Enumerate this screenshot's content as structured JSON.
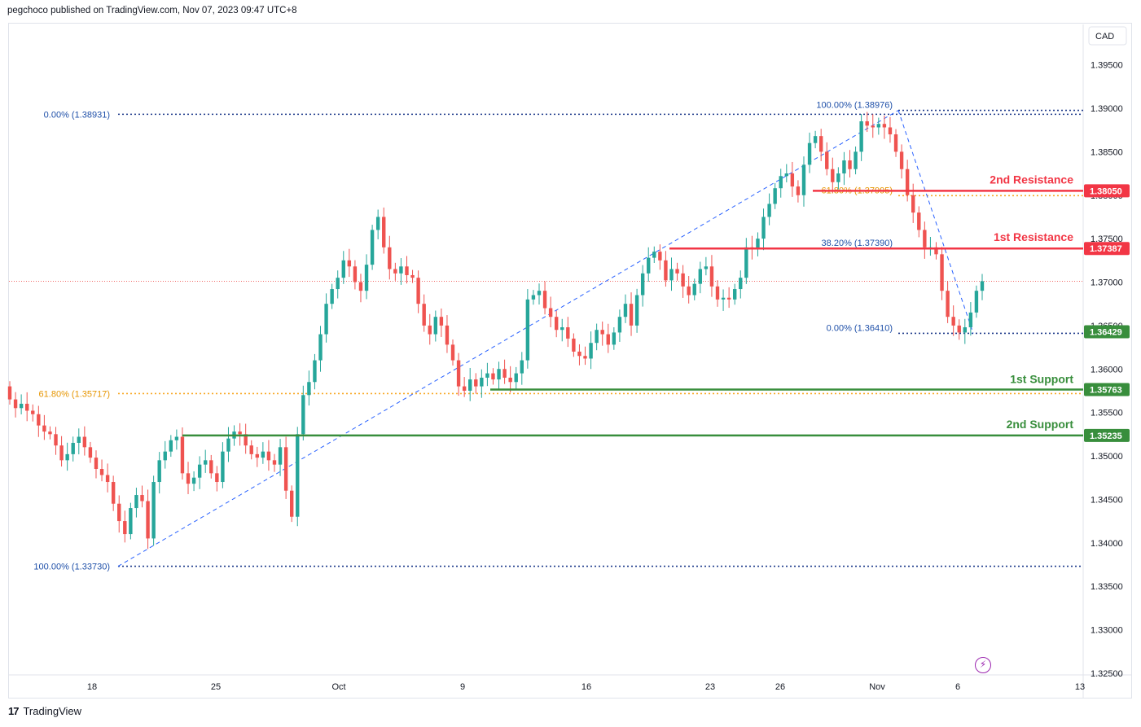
{
  "header": {
    "publisher_line": "pegchoco published on TradingView.com, Nov 07, 2023 09:47 UTC+8"
  },
  "footer": {
    "brand": "TradingView",
    "logo_glyph": "17"
  },
  "toolbar": {
    "currency_button": "CAD",
    "alert_icon": "lightning-icon"
  },
  "colors": {
    "bull": "#26a69a",
    "bear": "#ef5350",
    "resistance": "#f23645",
    "support": "#388e3c",
    "fib_blue": "#2962ff",
    "fib_orange": "#f9a825",
    "trend": "#2962ff"
  },
  "chart_data": {
    "type": "candlestick",
    "symbol_currency": "CAD",
    "ylim": [
      1.3245,
      1.3992
    ],
    "y_ticks": [
      "1.39500",
      "1.39000",
      "1.38500",
      "1.38000",
      "1.37500",
      "1.37000",
      "1.36500",
      "1.36000",
      "1.35500",
      "1.35000",
      "1.34500",
      "1.34000",
      "1.33500",
      "1.33000",
      "1.32500"
    ],
    "x_ticks": [
      "18",
      "25",
      "Oct",
      "9",
      "16",
      "23",
      "26",
      "Nov",
      "6",
      "13"
    ],
    "last_price": 1.3701,
    "levels": [
      {
        "name": "2nd Resistance",
        "value": "1.38050",
        "kind": "resistance"
      },
      {
        "name": "1st Resistance",
        "value": "1.37387",
        "kind": "resistance"
      },
      {
        "name": "",
        "value": "1.36429",
        "kind": "support-current"
      },
      {
        "name": "1st Support",
        "value": "1.35763",
        "kind": "support"
      },
      {
        "name": "2nd Support",
        "value": "1.35235",
        "kind": "support"
      }
    ],
    "fib_labels": [
      {
        "text": "0.00% (1.38931)",
        "price": 1.38931,
        "color": "blue"
      },
      {
        "text": "61.80% (1.35717)",
        "price": 1.35717,
        "color": "orange"
      },
      {
        "text": "100.00% (1.33730)",
        "price": 1.3373,
        "color": "blue"
      },
      {
        "text": "100.00% (1.38976)",
        "price": 1.38976,
        "color": "blue"
      },
      {
        "text": "61.80% (1.37995)",
        "price": 1.37995,
        "color": "orange"
      },
      {
        "text": "38.20% (1.37390)",
        "price": 1.3739,
        "color": "blue"
      },
      {
        "text": "0.00% (1.36410)",
        "price": 1.3641,
        "color": "blue"
      }
    ],
    "closes": [
      1.3565,
      1.3555,
      1.356,
      1.3552,
      1.3548,
      1.3535,
      1.3528,
      1.3525,
      1.3512,
      1.3495,
      1.3502,
      1.3515,
      1.3522,
      1.351,
      1.3498,
      1.3485,
      1.3478,
      1.347,
      1.3445,
      1.3425,
      1.341,
      1.344,
      1.3455,
      1.3448,
      1.3405,
      1.347,
      1.3495,
      1.3505,
      1.3518,
      1.3522,
      1.348,
      1.3468,
      1.3475,
      1.349,
      1.3495,
      1.348,
      1.347,
      1.3505,
      1.352,
      1.3528,
      1.3525,
      1.3512,
      1.3502,
      1.3498,
      1.3505,
      1.3495,
      1.349,
      1.351,
      1.346,
      1.343,
      1.3525,
      1.357,
      1.3585,
      1.361,
      1.364,
      1.3675,
      1.3692,
      1.3705,
      1.3725,
      1.3718,
      1.37,
      1.369,
      1.372,
      1.376,
      1.3775,
      1.374,
      1.3715,
      1.371,
      1.3718,
      1.3708,
      1.3705,
      1.3675,
      1.365,
      1.364,
      1.366,
      1.365,
      1.3628,
      1.361,
      1.358,
      1.3575,
      1.3588,
      1.358,
      1.359,
      1.3595,
      1.3588,
      1.36,
      1.359,
      1.3585,
      1.3595,
      1.361,
      1.368,
      1.3685,
      1.369,
      1.367,
      1.366,
      1.3645,
      1.3648,
      1.3635,
      1.362,
      1.3615,
      1.3612,
      1.363,
      1.3645,
      1.364,
      1.3628,
      1.3642,
      1.366,
      1.3675,
      1.365,
      1.3685,
      1.371,
      1.3728,
      1.3735,
      1.3725,
      1.3702,
      1.3715,
      1.371,
      1.3695,
      1.3685,
      1.3698,
      1.3715,
      1.3718,
      1.3695,
      1.368,
      1.3682,
      1.368,
      1.3692,
      1.3705,
      1.374,
      1.3738,
      1.375,
      1.3775,
      1.379,
      1.3808,
      1.3822,
      1.3825,
      1.381,
      1.38,
      1.3835,
      1.386,
      1.3868,
      1.385,
      1.383,
      1.3815,
      1.3825,
      1.384,
      1.383,
      1.385,
      1.3885,
      1.388,
      1.3878,
      1.3882,
      1.3878,
      1.387,
      1.385,
      1.383,
      1.38,
      1.378,
      1.376,
      1.374,
      1.374,
      1.3732,
      1.369,
      1.366,
      1.365,
      1.3642,
      1.3648,
      1.3665,
      1.369,
      1.3701
    ],
    "notes": "Closes approximate; open is previous close. Chart shows USD/CAD style fib retracements."
  }
}
